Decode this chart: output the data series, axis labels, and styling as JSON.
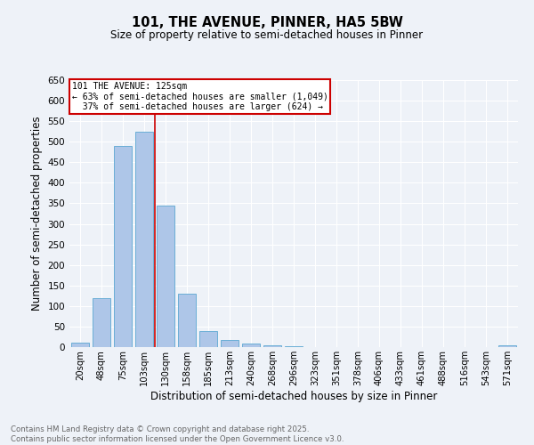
{
  "title": "101, THE AVENUE, PINNER, HA5 5BW",
  "subtitle": "Size of property relative to semi-detached houses in Pinner",
  "xlabel": "Distribution of semi-detached houses by size in Pinner",
  "ylabel": "Number of semi-detached properties",
  "categories": [
    "20sqm",
    "48sqm",
    "75sqm",
    "103sqm",
    "130sqm",
    "158sqm",
    "185sqm",
    "213sqm",
    "240sqm",
    "268sqm",
    "296sqm",
    "323sqm",
    "351sqm",
    "378sqm",
    "406sqm",
    "433sqm",
    "461sqm",
    "488sqm",
    "516sqm",
    "543sqm",
    "571sqm"
  ],
  "values": [
    10,
    120,
    490,
    525,
    345,
    130,
    40,
    18,
    8,
    4,
    2,
    1,
    1,
    0,
    0,
    0,
    0,
    0,
    0,
    0,
    5
  ],
  "bar_color": "#aec6e8",
  "bar_edgecolor": "#6aaed6",
  "property_label": "101 THE AVENUE: 125sqm",
  "pct_smaller": 63,
  "count_smaller": 1049,
  "pct_larger": 37,
  "count_larger": 624,
  "vline_x": 3.5,
  "vline_color": "#cc0000",
  "annotation_box_edgecolor": "#cc0000",
  "ylim": [
    0,
    650
  ],
  "yticks": [
    0,
    50,
    100,
    150,
    200,
    250,
    300,
    350,
    400,
    450,
    500,
    550,
    600,
    650
  ],
  "background_color": "#eef2f8",
  "grid_color": "#ffffff",
  "footer_line1": "Contains HM Land Registry data © Crown copyright and database right 2025.",
  "footer_line2": "Contains public sector information licensed under the Open Government Licence v3.0."
}
